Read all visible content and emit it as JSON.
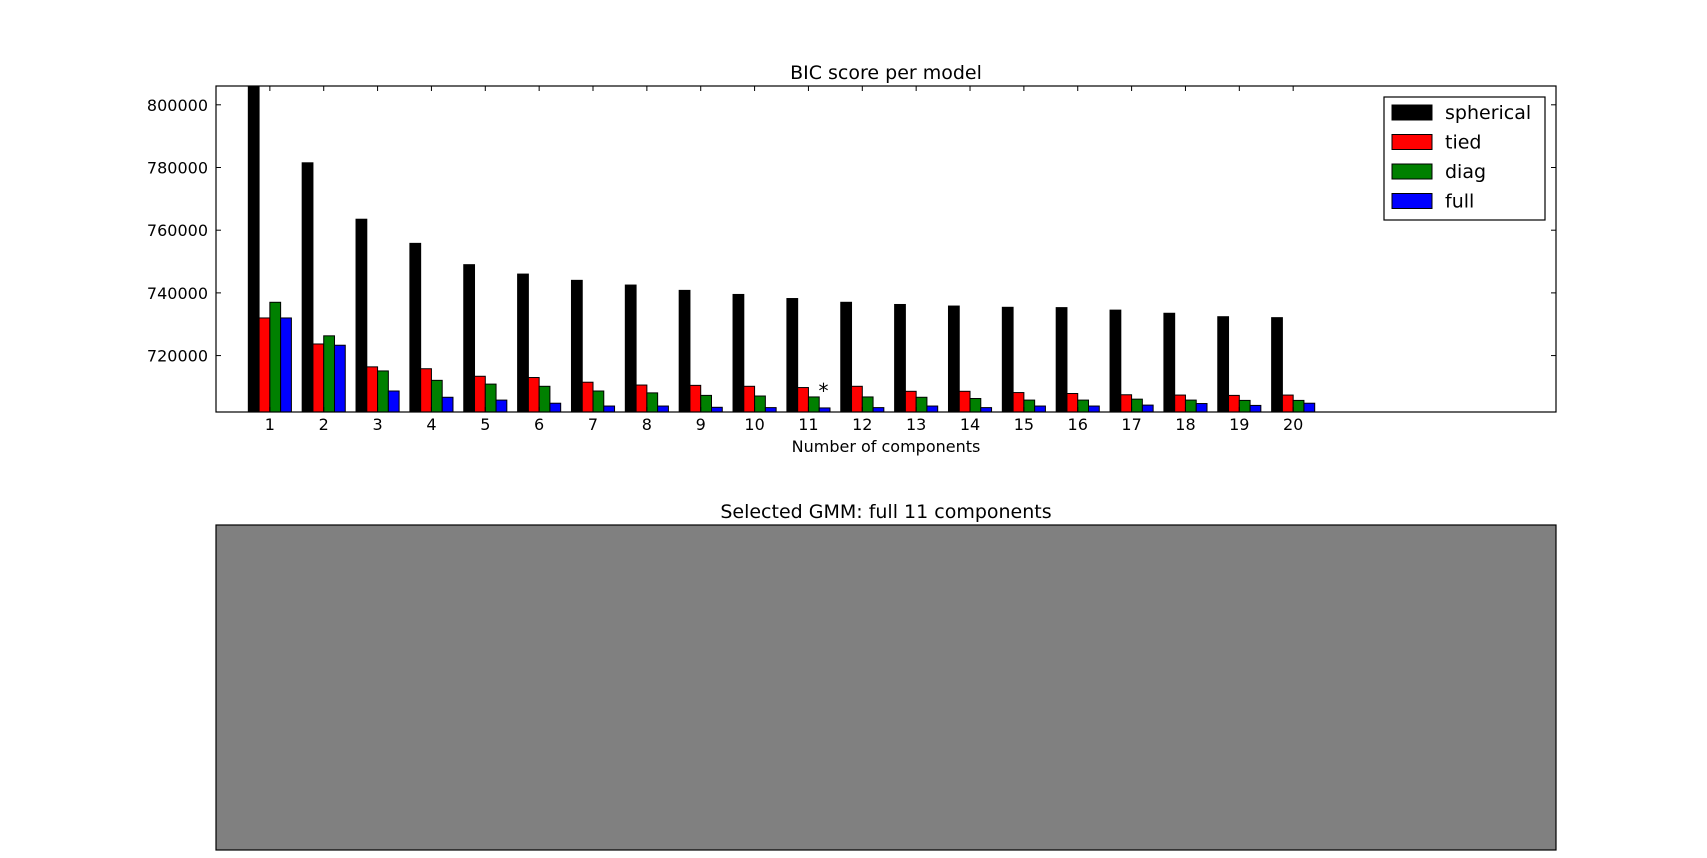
{
  "chart_data": [
    {
      "type": "bar",
      "title": "BIC score per model",
      "xlabel": "Number of components",
      "ylabel": "",
      "categories": [
        "1",
        "2",
        "3",
        "4",
        "5",
        "6",
        "7",
        "8",
        "9",
        "10",
        "11",
        "12",
        "13",
        "14",
        "15",
        "16",
        "17",
        "18",
        "19",
        "20"
      ],
      "ylim": [
        702000,
        806000
      ],
      "xlim": [
        0.0,
        24.88
      ],
      "yticks": [
        720000,
        740000,
        760000,
        780000,
        800000
      ],
      "ytick_labels": [
        "720000",
        "740000",
        "760000",
        "780000",
        "800000"
      ],
      "grid": false,
      "legend": "top-right",
      "series": [
        {
          "name": "spherical",
          "color": "#000000",
          "values": [
            806000,
            781500,
            763500,
            755800,
            749000,
            746000,
            744000,
            742500,
            740800,
            739500,
            738200,
            737000,
            736300,
            735800,
            735400,
            735300,
            734500,
            733500,
            732400,
            732100
          ]
        },
        {
          "name": "tied",
          "color": "#ff0000",
          "values": [
            732000,
            723700,
            716400,
            715800,
            713400,
            713000,
            711500,
            710600,
            710500,
            710200,
            709800,
            710200,
            708600,
            708600,
            708200,
            707900,
            707500,
            707400,
            707300,
            707400
          ]
        },
        {
          "name": "diag",
          "color": "#008000",
          "values": [
            737000,
            726300,
            715100,
            712100,
            710900,
            710200,
            708700,
            708100,
            707300,
            707100,
            706800,
            706800,
            706700,
            706300,
            705800,
            705800,
            706100,
            705800,
            705700,
            705700
          ]
        },
        {
          "name": "full",
          "color": "#0000ff",
          "values": [
            732000,
            723300,
            708700,
            706700,
            705800,
            704800,
            703900,
            703900,
            703500,
            703400,
            703300,
            703400,
            703900,
            703400,
            703900,
            703900,
            704200,
            704700,
            704100,
            704800
          ]
        }
      ],
      "annotations": [
        {
          "text": "*",
          "x": 11
        }
      ]
    },
    {
      "type": "scatter",
      "title": "Selected GMM: full 11 components",
      "background_color": "#808080"
    }
  ]
}
